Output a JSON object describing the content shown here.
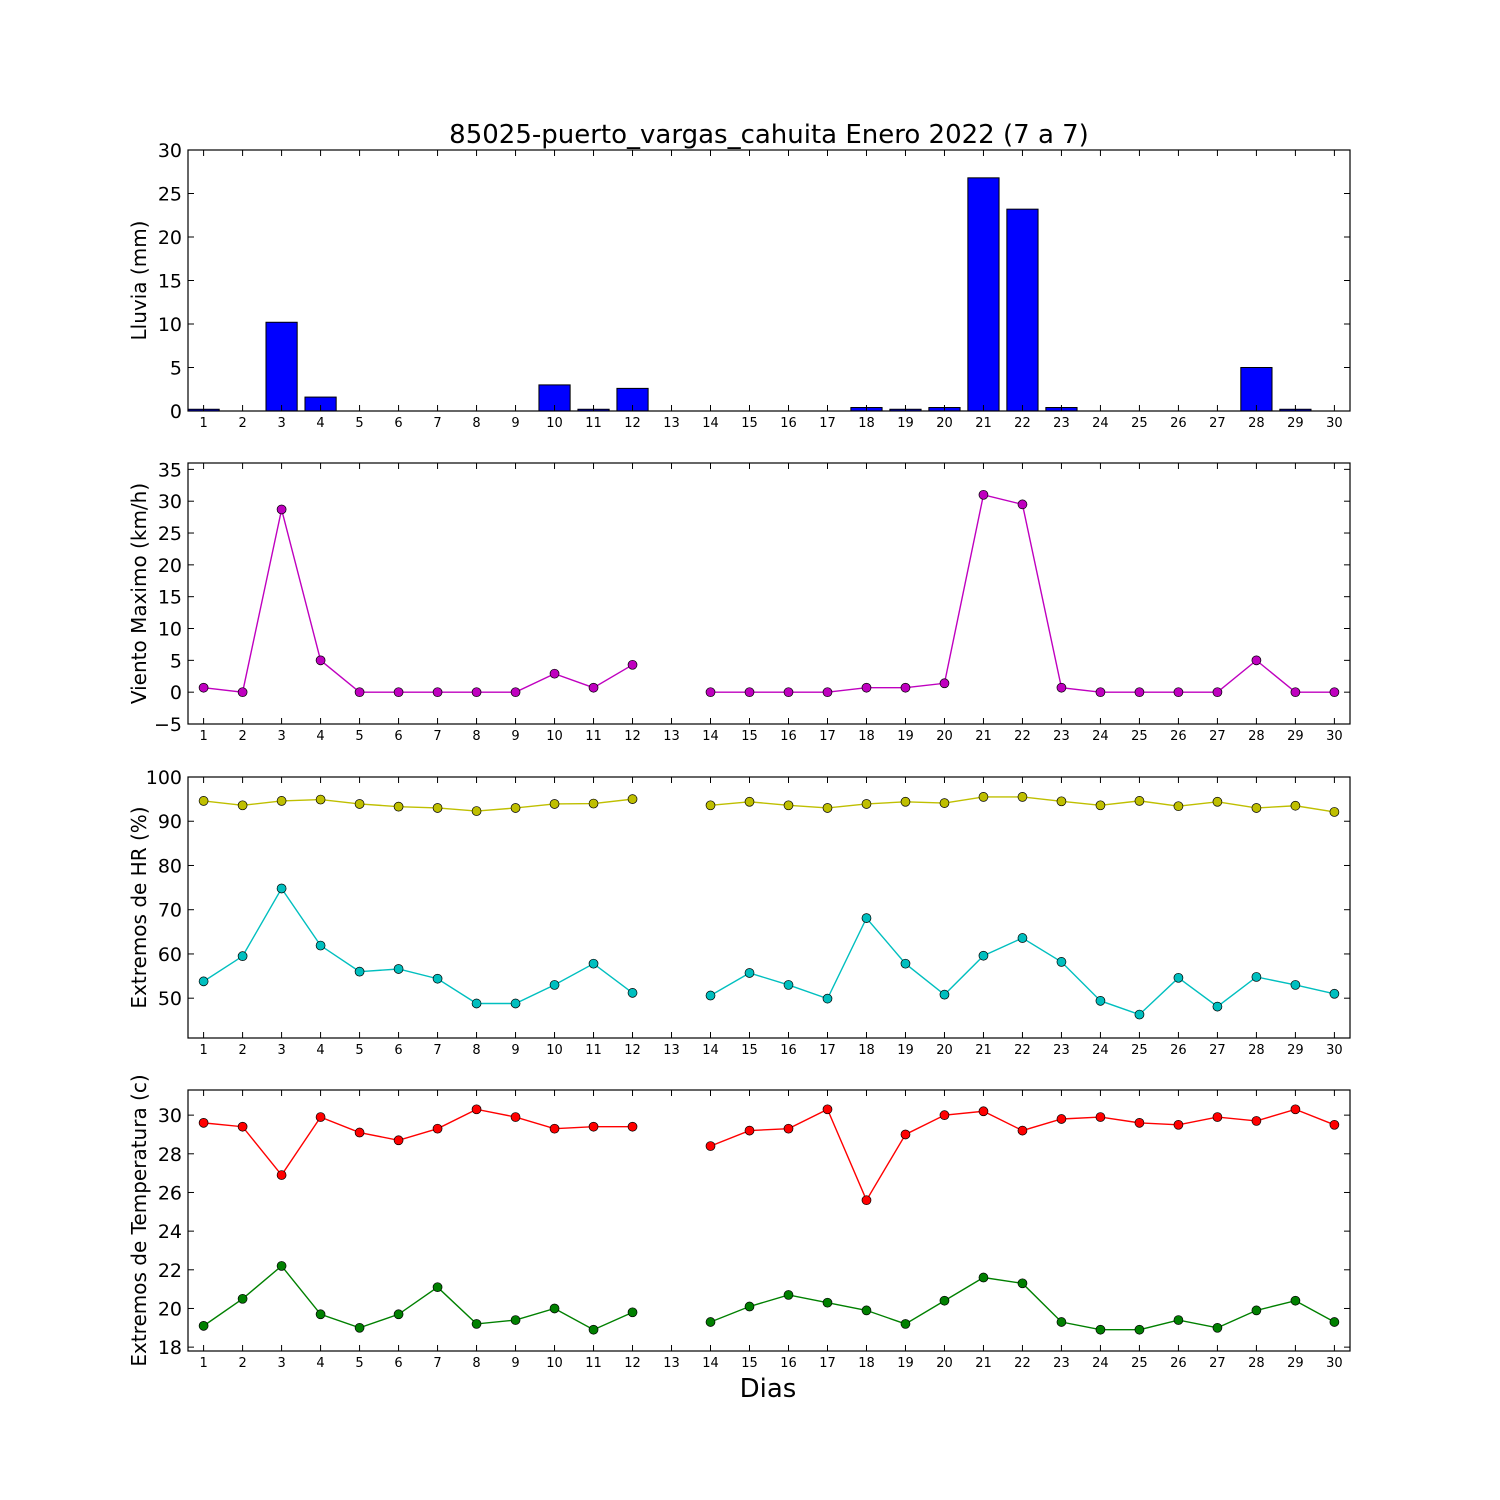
{
  "chart_data": {
    "title": "85025-puerto_vargas_cahuita Enero 2022  (7 a 7)",
    "xlabel": "Dias",
    "days": [
      1,
      2,
      3,
      4,
      5,
      6,
      7,
      8,
      9,
      10,
      11,
      12,
      13,
      14,
      15,
      16,
      17,
      18,
      19,
      20,
      21,
      22,
      23,
      24,
      25,
      26,
      27,
      28,
      29,
      30
    ],
    "panels": [
      {
        "type": "bar",
        "ylabel": "Lluvia (mm)",
        "ylim": [
          0,
          30
        ],
        "yticks": [
          0,
          5,
          10,
          15,
          20,
          25,
          30
        ],
        "series": [
          {
            "color": "#0000ff",
            "values": [
              0.2,
              0,
              10.2,
              1.6,
              0,
              0,
              0,
              0,
              0,
              3.0,
              0.2,
              2.6,
              0,
              0,
              0,
              0,
              0,
              0.4,
              0.2,
              0.4,
              26.8,
              23.2,
              0.4,
              0,
              0,
              0,
              0,
              5.0,
              0.2,
              0
            ]
          }
        ]
      },
      {
        "type": "line",
        "ylabel": "Viento Maximo (km/h)",
        "ylim": [
          -5,
          36
        ],
        "yticks": [
          -5,
          0,
          5,
          10,
          15,
          20,
          25,
          30,
          35
        ],
        "series": [
          {
            "color": "#bf00bf",
            "values": [
              0.7,
              0,
              28.7,
              5.0,
              0,
              0,
              0,
              0,
              0,
              2.9,
              0.7,
              4.3,
              null,
              0,
              0,
              0,
              0,
              0.7,
              0.7,
              1.4,
              31.0,
              29.5,
              0.7,
              0,
              0,
              0,
              0,
              5.0,
              0,
              0
            ]
          }
        ]
      },
      {
        "type": "line",
        "ylabel": "Extremos de HR (%)",
        "ylim": [
          41,
          100
        ],
        "yticks": [
          50,
          60,
          70,
          80,
          90,
          100
        ],
        "series": [
          {
            "color": "#bfbf00",
            "values": [
              94.6,
              93.6,
              94.6,
              94.9,
              93.9,
              93.3,
              93.0,
              92.3,
              93.0,
              93.9,
              94.0,
              95.0,
              null,
              93.6,
              94.4,
              93.6,
              93.0,
              93.9,
              94.4,
              94.1,
              95.5,
              95.5,
              94.5,
              93.6,
              94.6,
              93.4,
              94.4,
              93.0,
              93.5,
              92.1
            ]
          },
          {
            "color": "#00bfbf",
            "values": [
              53.8,
              59.5,
              74.8,
              61.9,
              56.0,
              56.6,
              54.4,
              48.8,
              48.8,
              53.0,
              57.8,
              51.2,
              null,
              50.6,
              55.7,
              53.0,
              49.9,
              68.1,
              57.8,
              50.8,
              59.6,
              63.6,
              58.2,
              49.4,
              46.3,
              54.6,
              48.1,
              54.8,
              53.0,
              51.0
            ]
          }
        ]
      },
      {
        "type": "line",
        "ylabel": "Extremos de Temperatura (c)",
        "ylim": [
          17.8,
          31.3
        ],
        "yticks": [
          18,
          20,
          22,
          24,
          26,
          28,
          30
        ],
        "series": [
          {
            "color": "#ff0000",
            "values": [
              29.6,
              29.4,
              26.9,
              29.9,
              29.1,
              28.7,
              29.3,
              30.3,
              29.9,
              29.3,
              29.4,
              29.4,
              null,
              28.4,
              29.2,
              29.3,
              30.3,
              25.6,
              29.0,
              30.0,
              30.2,
              29.2,
              29.8,
              29.9,
              29.6,
              29.5,
              29.9,
              29.7,
              30.3,
              29.5
            ]
          },
          {
            "color": "#008000",
            "values": [
              19.1,
              20.5,
              22.2,
              19.7,
              19.0,
              19.7,
              21.1,
              19.2,
              19.4,
              20.0,
              18.9,
              19.8,
              null,
              19.3,
              20.1,
              20.7,
              20.3,
              19.9,
              19.2,
              20.4,
              21.6,
              21.3,
              19.3,
              18.9,
              18.9,
              19.4,
              19.0,
              19.9,
              20.4,
              19.3
            ]
          }
        ]
      }
    ]
  }
}
